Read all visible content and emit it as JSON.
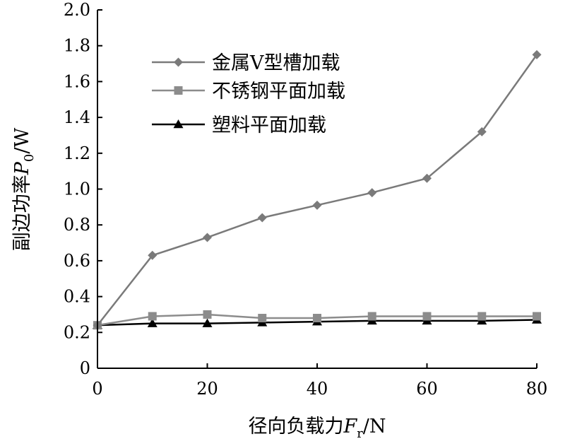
{
  "chart_data": {
    "type": "line",
    "title": "",
    "xlabel": {
      "main": "径向负载力",
      "var": "F",
      "sub": "r",
      "unit": "/N"
    },
    "ylabel": {
      "main": "副边功率",
      "var": "P",
      "sub": "0",
      "unit": "/W"
    },
    "xlim": [
      0,
      80
    ],
    "ylim": [
      0,
      2.0
    ],
    "xticks": [
      0,
      20,
      40,
      60,
      80
    ],
    "xtick_labels": [
      "0",
      "20",
      "40",
      "60",
      "80"
    ],
    "yticks": [
      0,
      0.2,
      0.4,
      0.6,
      0.8,
      1.0,
      1.2,
      1.4,
      1.6,
      1.8,
      2.0
    ],
    "ytick_labels": [
      "0",
      "0.2",
      "0.4",
      "0.6",
      "0.8",
      "1.0",
      "1.2",
      "1.4",
      "1.6",
      "1.8",
      "2.0"
    ],
    "grid": false,
    "legend_position": "top-center",
    "x": [
      0,
      10,
      20,
      30,
      40,
      50,
      60,
      70,
      80
    ],
    "series": [
      {
        "name": "金属V型槽加载",
        "marker": "diamond",
        "color": "#7a7a7a",
        "values": [
          0.24,
          0.63,
          0.73,
          0.84,
          0.91,
          0.98,
          1.06,
          1.32,
          1.75
        ]
      },
      {
        "name": "不锈钢平面加载",
        "marker": "square",
        "color": "#8c8c8c",
        "values": [
          0.24,
          0.29,
          0.3,
          0.28,
          0.28,
          0.29,
          0.29,
          0.29,
          0.29
        ]
      },
      {
        "name": "塑料平面加载",
        "marker": "triangle",
        "color": "#000000",
        "values": [
          0.24,
          0.25,
          0.25,
          0.255,
          0.26,
          0.265,
          0.265,
          0.265,
          0.27
        ]
      }
    ]
  }
}
